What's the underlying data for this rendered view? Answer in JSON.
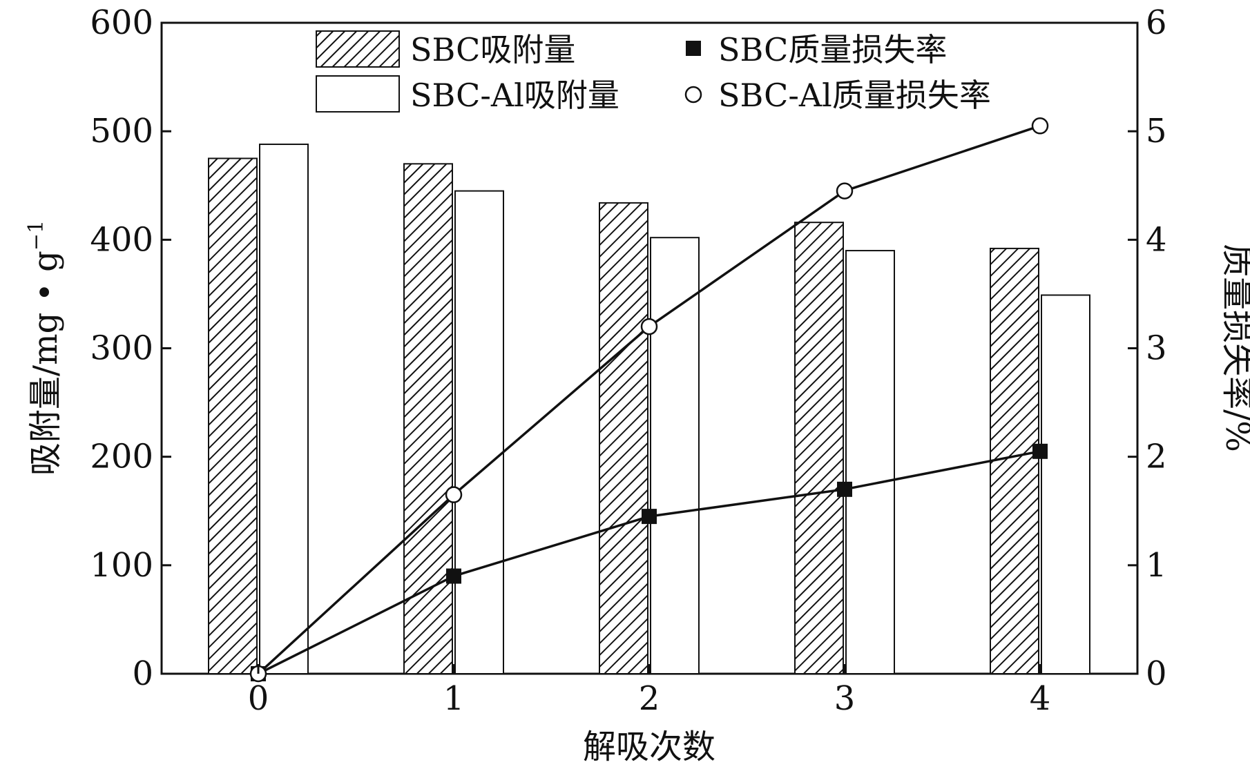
{
  "chart_data": {
    "type": "bar",
    "categories": [
      "0",
      "1",
      "2",
      "3",
      "4"
    ],
    "xlabel": "解吸次数",
    "ylabel": "吸附量/mg • g",
    "ylabel_sup": "−1",
    "y2label": "质量损失率/%",
    "ylim": [
      0,
      600
    ],
    "y_ticks": [
      "0",
      "100",
      "200",
      "300",
      "400",
      "500",
      "600"
    ],
    "y2lim": [
      0,
      6
    ],
    "y2_ticks": [
      "0",
      "1",
      "2",
      "3",
      "4",
      "5",
      "6"
    ],
    "grid": false,
    "legend_position": "top",
    "bar_series": [
      {
        "name": "SBC吸附量",
        "style": "hatched",
        "values": [
          475,
          470,
          434,
          416,
          392
        ]
      },
      {
        "name": "SBC-Al吸附量",
        "style": "white",
        "values": [
          488,
          445,
          402,
          390,
          349
        ]
      }
    ],
    "line_series": [
      {
        "name": "SBC质量损失率",
        "marker": "filled-square",
        "axis": "right",
        "values": [
          0.0,
          0.9,
          1.45,
          1.7,
          2.05
        ]
      },
      {
        "name": "SBC-Al质量损失率",
        "marker": "open-circle",
        "axis": "right",
        "values": [
          0.0,
          1.65,
          3.2,
          4.45,
          5.05
        ]
      }
    ],
    "colors": {
      "ink": "#111111",
      "background": "#ffffff"
    }
  }
}
